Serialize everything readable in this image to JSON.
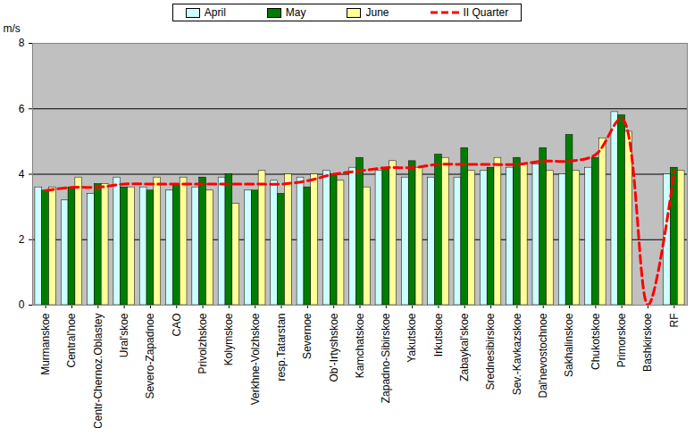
{
  "chart_data": {
    "type": "bar",
    "categories": [
      "Murmanskoe",
      "Central'noe",
      "Centr-Chernoz.Oblastey",
      "Ural'skoe",
      "Severo-Zapadnoe",
      "CAO",
      "Privolzhskoe",
      "Kolymskoe",
      "Verkhne-Volzhskoe",
      "resp.Tatarstan",
      "Severnoe",
      "Ob'-Irtyshskoe",
      "Kamchatskoe",
      "Zapadno-Sibirskoe",
      "Yakutskoe",
      "Irkutskoe",
      "Zabaykal'skoe",
      "Srednesibirskoe",
      "Sev.-Kavkazskoe",
      "Dal'nevostochnoe",
      "Sakhalinskoe",
      "Chukotskoe",
      "Primorskoe",
      "Bashkirskoe",
      "RF"
    ],
    "series": [
      {
        "name": "April",
        "type": "bar",
        "color": "#ccffff",
        "values": [
          3.6,
          3.2,
          3.4,
          3.9,
          3.6,
          3.5,
          3.6,
          3.9,
          3.5,
          3.8,
          3.9,
          4.1,
          4.2,
          4.1,
          3.9,
          3.9,
          3.9,
          4.1,
          4.2,
          4.3,
          4.0,
          4.2,
          5.9,
          0,
          4.0
        ]
      },
      {
        "name": "May",
        "type": "bar",
        "color": "#007d00",
        "values": [
          3.5,
          3.6,
          3.7,
          3.6,
          3.5,
          3.7,
          3.9,
          4.0,
          3.5,
          3.4,
          3.6,
          4.0,
          4.5,
          4.2,
          4.4,
          4.6,
          4.8,
          4.2,
          4.5,
          4.8,
          5.2,
          4.5,
          5.8,
          0,
          4.2
        ]
      },
      {
        "name": "June",
        "type": "bar",
        "color": "#ffff99",
        "values": [
          3.6,
          3.9,
          3.7,
          3.6,
          3.9,
          3.9,
          3.5,
          3.1,
          4.1,
          4.0,
          4.0,
          3.8,
          3.6,
          4.4,
          4.2,
          4.5,
          4.1,
          4.5,
          4.3,
          4.1,
          4.1,
          5.1,
          5.3,
          0,
          4.1
        ]
      },
      {
        "name": "II Quarter",
        "type": "line",
        "line_style": "dashed",
        "color": "#ff0000",
        "values": [
          3.5,
          3.6,
          3.6,
          3.7,
          3.7,
          3.7,
          3.7,
          3.7,
          3.7,
          3.7,
          3.8,
          4.0,
          4.1,
          4.2,
          4.2,
          4.3,
          4.3,
          4.3,
          4.3,
          4.4,
          4.4,
          4.6,
          5.7,
          0,
          4.1
        ]
      }
    ],
    "y_label": "m/s",
    "ylim": [
      0,
      8
    ],
    "yticks": [
      0,
      2,
      4,
      6,
      8
    ],
    "grid": true,
    "legend": "top"
  }
}
